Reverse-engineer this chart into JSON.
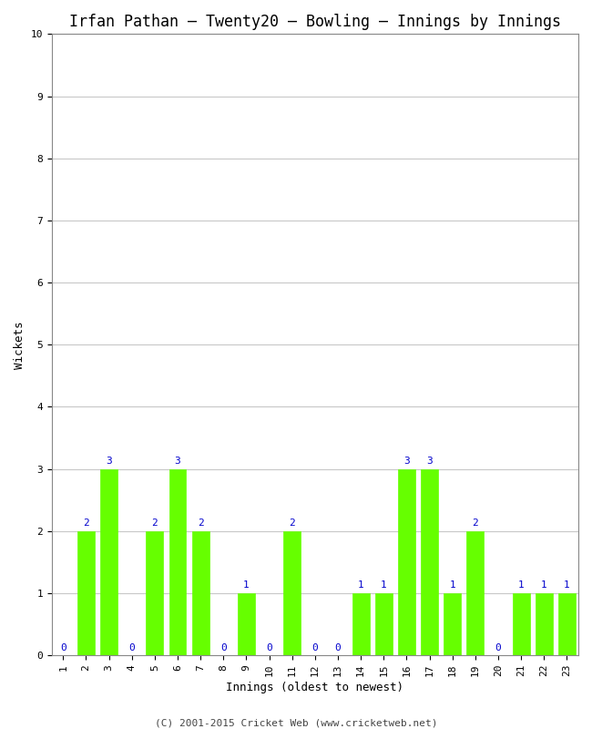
{
  "title": "Irfan Pathan – Twenty20 – Bowling – Innings by Innings",
  "xlabel": "Innings (oldest to newest)",
  "ylabel": "Wickets",
  "footer": "(C) 2001-2015 Cricket Web (www.cricketweb.net)",
  "innings": [
    1,
    2,
    3,
    4,
    5,
    6,
    7,
    8,
    9,
    10,
    11,
    12,
    13,
    14,
    15,
    16,
    17,
    18,
    19,
    20,
    21,
    22,
    23
  ],
  "wickets": [
    0,
    2,
    3,
    0,
    2,
    3,
    2,
    0,
    1,
    0,
    2,
    0,
    0,
    1,
    1,
    3,
    3,
    1,
    2,
    0,
    1,
    1,
    1
  ],
  "bar_color": "#66ff00",
  "bar_edge_color": "#66ff00",
  "label_color": "#0000cc",
  "background_color": "#ffffff",
  "grid_color": "#c8c8c8",
  "ylim": [
    0,
    10
  ],
  "yticks": [
    0,
    1,
    2,
    3,
    4,
    5,
    6,
    7,
    8,
    9,
    10
  ],
  "title_fontsize": 12,
  "axis_label_fontsize": 9,
  "tick_fontsize": 8,
  "bar_label_fontsize": 8,
  "footer_fontsize": 8,
  "bar_width": 0.75
}
